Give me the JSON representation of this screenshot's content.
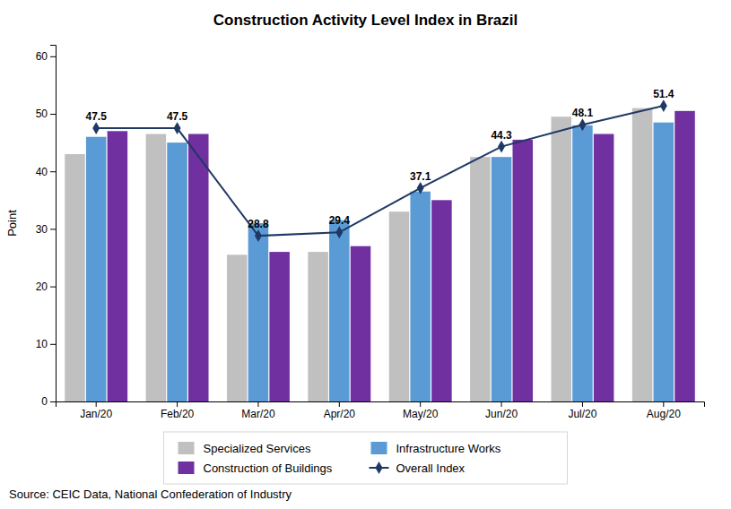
{
  "chart_data": {
    "type": "bar",
    "title": "Construction Activity Level Index in Brazil",
    "source": "Source: CEIC Data, National Confederation of Industry",
    "ylabel": "Point",
    "categories": [
      "Jan/20",
      "Feb/20",
      "Mar/20",
      "Apr/20",
      "May/20",
      "Jun/20",
      "Jul/20",
      "Aug/20"
    ],
    "series": [
      {
        "name": "Specialized Services",
        "type": "bar",
        "color": "#c0c0c0",
        "values": [
          43.0,
          46.5,
          25.5,
          26.0,
          33.0,
          42.5,
          49.5,
          51.0
        ]
      },
      {
        "name": "Infrastructure Works",
        "type": "bar",
        "color": "#5b9bd5",
        "values": [
          46.0,
          45.0,
          31.0,
          31.5,
          36.5,
          42.5,
          48.0,
          48.5
        ]
      },
      {
        "name": "Construction of Buildings",
        "type": "bar",
        "color": "#7030a0",
        "values": [
          47.0,
          46.5,
          26.0,
          27.0,
          35.0,
          45.5,
          46.5,
          50.5
        ]
      },
      {
        "name": "Overall Index",
        "type": "line",
        "color": "#1f3864",
        "marker": "diamond",
        "data_labels": true,
        "values": [
          47.5,
          47.5,
          28.8,
          29.4,
          37.1,
          44.3,
          48.1,
          51.4
        ]
      }
    ],
    "ylim": [
      0,
      62
    ],
    "yticks": [
      0,
      10,
      20,
      30,
      40,
      50,
      60
    ],
    "grid": false,
    "legend": "bottom"
  }
}
